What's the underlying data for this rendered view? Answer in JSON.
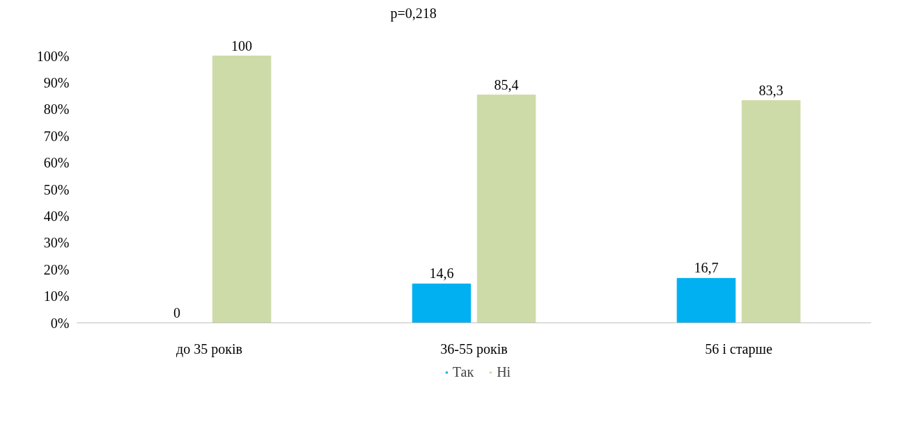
{
  "chart_data": {
    "type": "bar",
    "categories": [
      "до 35 років",
      "36-55 років",
      "56 і старше"
    ],
    "series": [
      {
        "name": "Так",
        "color": "#00b0f0",
        "values": [
          0,
          14.6,
          16.7
        ],
        "value_labels": [
          "0",
          "14,6",
          "16,7"
        ]
      },
      {
        "name": "Ні",
        "color": "#cddba8",
        "values": [
          100,
          85.4,
          83.3
        ],
        "value_labels": [
          "100",
          "85,4",
          "83,3"
        ]
      }
    ],
    "ylim": [
      0,
      100
    ],
    "yticks": [
      {
        "value": 0,
        "label": "0%"
      },
      {
        "value": 10,
        "label": "10%"
      },
      {
        "value": 20,
        "label": "20%"
      },
      {
        "value": 30,
        "label": "30%"
      },
      {
        "value": 40,
        "label": "40%"
      },
      {
        "value": 50,
        "label": "50%"
      },
      {
        "value": 60,
        "label": "60%"
      },
      {
        "value": 70,
        "label": "70%"
      },
      {
        "value": 80,
        "label": "80%"
      },
      {
        "value": 90,
        "label": "90%"
      },
      {
        "value": 100,
        "label": "100%"
      }
    ],
    "annotations": [
      "p=0,218"
    ],
    "legend": "bottom",
    "grid": false
  }
}
